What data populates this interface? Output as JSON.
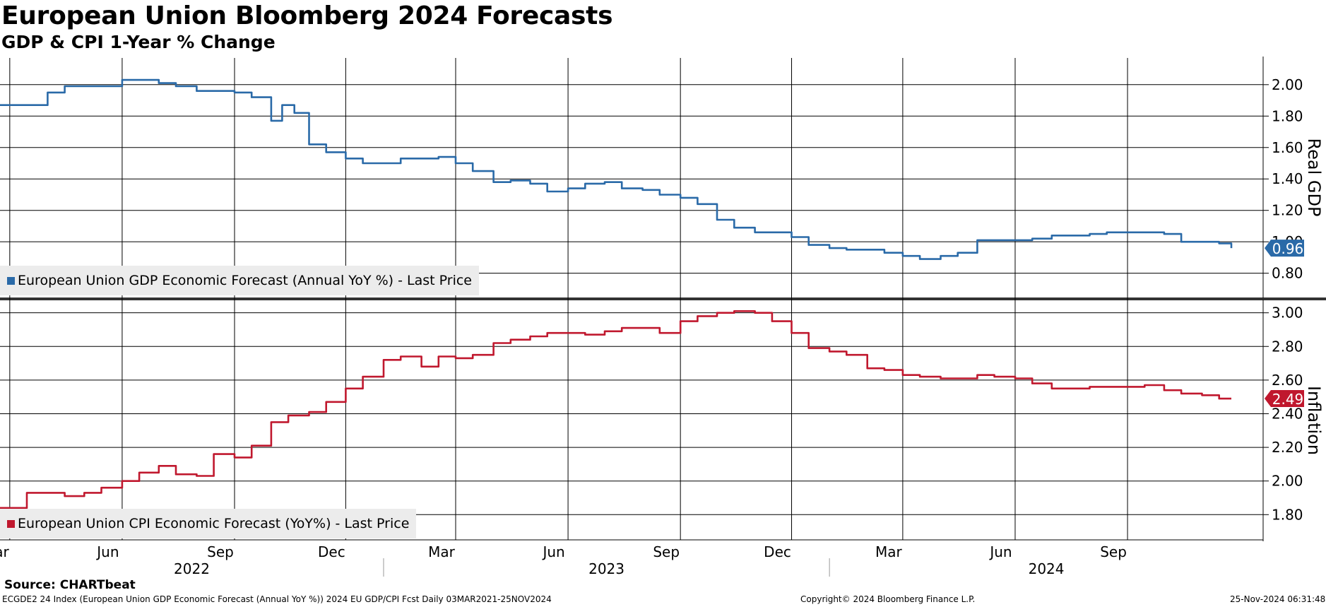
{
  "header": {
    "title": "European Union Bloomberg 2024 Forecasts",
    "subtitle": "GDP & CPI 1-Year % Change"
  },
  "colors": {
    "gdp": "#2a6aa8",
    "cpi": "#c0182e",
    "grid": "#000000",
    "legend_bg": "#ececec"
  },
  "chart_data": [
    {
      "type": "line",
      "panel": "top",
      "ylabel": "Real GDP",
      "ylim": [
        0.65,
        2.17
      ],
      "yticks": [
        0.8,
        1.0,
        1.2,
        1.4,
        1.6,
        1.8,
        2.0
      ],
      "ytick_labels": [
        "0.80",
        "1.00",
        "1.20",
        "1.40",
        "1.60",
        "1.80",
        "2.00"
      ],
      "legend": "European Union GDP Economic Forecast (Annual YoY %) - Last Price",
      "last_value_label": "0.96",
      "series": [
        {
          "name": "European Union GDP Economic Forecast (Annual YoY %) - Last Price",
          "x": [
            "2022-02-21",
            "2022-03-01",
            "2022-03-15",
            "2022-04-01",
            "2022-04-15",
            "2022-05-01",
            "2022-05-15",
            "2022-06-01",
            "2022-06-15",
            "2022-07-01",
            "2022-07-15",
            "2022-08-01",
            "2022-08-15",
            "2022-09-01",
            "2022-09-15",
            "2022-10-01",
            "2022-10-10",
            "2022-10-20",
            "2022-11-01",
            "2022-11-15",
            "2022-12-01",
            "2022-12-15",
            "2023-01-01",
            "2023-01-15",
            "2023-02-01",
            "2023-02-15",
            "2023-03-01",
            "2023-03-15",
            "2023-04-01",
            "2023-04-15",
            "2023-05-01",
            "2023-05-15",
            "2023-06-01",
            "2023-06-15",
            "2023-07-01",
            "2023-07-15",
            "2023-08-01",
            "2023-08-15",
            "2023-09-01",
            "2023-09-15",
            "2023-10-01",
            "2023-10-15",
            "2023-11-01",
            "2023-11-15",
            "2023-12-01",
            "2023-12-15",
            "2024-01-01",
            "2024-01-15",
            "2024-02-01",
            "2024-02-15",
            "2024-03-01",
            "2024-03-15",
            "2024-04-01",
            "2024-04-15",
            "2024-05-01",
            "2024-05-15",
            "2024-06-01",
            "2024-06-15",
            "2024-07-01",
            "2024-07-15",
            "2024-08-01",
            "2024-08-15",
            "2024-09-01",
            "2024-09-15",
            "2024-10-01",
            "2024-10-15",
            "2024-11-01",
            "2024-11-15",
            "2024-11-25"
          ],
          "values": [
            1.87,
            1.87,
            1.87,
            1.95,
            1.99,
            1.99,
            1.99,
            2.03,
            2.03,
            2.01,
            1.99,
            1.96,
            1.96,
            1.95,
            1.92,
            1.77,
            1.87,
            1.82,
            1.62,
            1.57,
            1.53,
            1.5,
            1.5,
            1.53,
            1.53,
            1.54,
            1.5,
            1.45,
            1.38,
            1.39,
            1.37,
            1.32,
            1.34,
            1.37,
            1.38,
            1.34,
            1.33,
            1.3,
            1.28,
            1.24,
            1.14,
            1.09,
            1.06,
            1.06,
            1.03,
            0.98,
            0.96,
            0.95,
            0.95,
            0.93,
            0.91,
            0.89,
            0.91,
            0.93,
            1.01,
            1.01,
            1.01,
            1.02,
            1.04,
            1.04,
            1.05,
            1.06,
            1.06,
            1.06,
            1.05,
            1.0,
            1.0,
            0.99,
            0.96
          ]
        }
      ]
    },
    {
      "type": "line",
      "panel": "bottom",
      "ylabel": "Inflation",
      "ylim": [
        1.65,
        3.07
      ],
      "yticks": [
        1.8,
        2.0,
        2.2,
        2.4,
        2.6,
        2.8,
        3.0
      ],
      "ytick_labels": [
        "1.80",
        "2.00",
        "2.20",
        "2.40",
        "2.60",
        "2.80",
        "3.00"
      ],
      "legend": "European Union CPI Economic Forecast (YoY%) - Last Price",
      "last_value_label": "2.49",
      "series": [
        {
          "name": "European Union CPI Economic Forecast (YoY%) - Last Price",
          "x": [
            "2022-02-21",
            "2022-03-01",
            "2022-03-15",
            "2022-04-01",
            "2022-04-15",
            "2022-05-01",
            "2022-05-15",
            "2022-06-01",
            "2022-06-15",
            "2022-07-01",
            "2022-07-15",
            "2022-08-01",
            "2022-08-15",
            "2022-09-01",
            "2022-09-15",
            "2022-10-01",
            "2022-10-15",
            "2022-11-01",
            "2022-11-15",
            "2022-12-01",
            "2022-12-15",
            "2023-01-01",
            "2023-01-15",
            "2023-02-01",
            "2023-02-15",
            "2023-03-01",
            "2023-03-15",
            "2023-04-01",
            "2023-04-15",
            "2023-05-01",
            "2023-05-15",
            "2023-06-01",
            "2023-06-15",
            "2023-07-01",
            "2023-07-15",
            "2023-08-01",
            "2023-08-15",
            "2023-09-01",
            "2023-09-15",
            "2023-10-01",
            "2023-10-15",
            "2023-11-01",
            "2023-11-15",
            "2023-12-01",
            "2023-12-15",
            "2024-01-01",
            "2024-01-15",
            "2024-02-01",
            "2024-02-15",
            "2024-03-01",
            "2024-03-15",
            "2024-04-01",
            "2024-04-15",
            "2024-05-01",
            "2024-05-15",
            "2024-06-01",
            "2024-06-15",
            "2024-07-01",
            "2024-07-15",
            "2024-08-01",
            "2024-08-15",
            "2024-09-01",
            "2024-09-15",
            "2024-10-01",
            "2024-10-15",
            "2024-11-01",
            "2024-11-15",
            "2024-11-25"
          ],
          "values": [
            1.84,
            1.84,
            1.93,
            1.93,
            1.91,
            1.93,
            1.96,
            2.0,
            2.05,
            2.09,
            2.04,
            2.03,
            2.16,
            2.14,
            2.21,
            2.35,
            2.39,
            2.41,
            2.47,
            2.55,
            2.62,
            2.72,
            2.74,
            2.68,
            2.74,
            2.73,
            2.75,
            2.82,
            2.84,
            2.86,
            2.88,
            2.88,
            2.87,
            2.89,
            2.91,
            2.91,
            2.88,
            2.95,
            2.98,
            3.0,
            3.01,
            3.0,
            2.95,
            2.88,
            2.79,
            2.77,
            2.75,
            2.67,
            2.66,
            2.63,
            2.62,
            2.61,
            2.61,
            2.63,
            2.62,
            2.61,
            2.58,
            2.55,
            2.55,
            2.56,
            2.56,
            2.56,
            2.57,
            2.54,
            2.52,
            2.51,
            2.49,
            2.49
          ]
        }
      ]
    }
  ],
  "xaxis": {
    "month_labels": [
      "Mar",
      "Jun",
      "Sep",
      "Dec",
      "Mar",
      "Jun",
      "Sep",
      "Dec",
      "Mar",
      "Jun",
      "Sep"
    ],
    "month_dates": [
      "2022-03-01",
      "2022-06-01",
      "2022-09-01",
      "2022-12-01",
      "2023-03-01",
      "2023-06-01",
      "2023-09-01",
      "2023-12-01",
      "2024-03-01",
      "2024-06-01",
      "2024-09-01"
    ],
    "years": [
      "2022",
      "2023",
      "2024"
    ],
    "range": [
      "2022-02-21",
      "2024-12-21"
    ]
  },
  "footer": {
    "source": "Source: CHARTbeat",
    "index_info": "ECGDE2 24 Index (European Union GDP Economic Forecast (Annual YoY %)) 2024 EU GDP/CPI Fcst  Daily 03MAR2021-25NOV2024",
    "copyright": "Copyright© 2024 Bloomberg Finance L.P.",
    "timestamp": "25-Nov-2024 06:31:48"
  }
}
